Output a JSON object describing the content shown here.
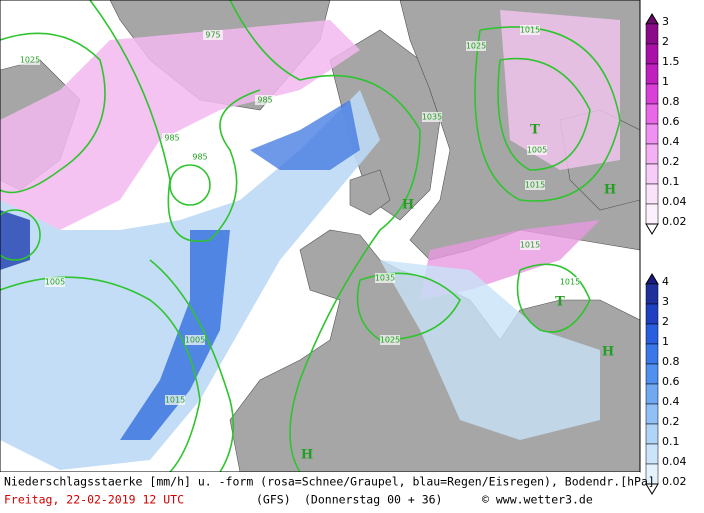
{
  "map_labels": [
    "1025",
    "975",
    "985",
    "985",
    "985",
    "1035",
    "1025",
    "1015",
    "1005",
    "1015",
    "1035",
    "1015",
    "1015",
    "1025",
    "1005",
    "1005",
    "1015",
    "T",
    "T",
    "H",
    "H",
    "H",
    "H"
  ],
  "legend_snow": [
    "3",
    "2",
    "1.5",
    "1",
    "0.8",
    "0.6",
    "0.4",
    "0.2",
    "0.1",
    "0.04",
    "0.02"
  ],
  "legend_rain": [
    "4",
    "3",
    "2",
    "1",
    "0.8",
    "0.6",
    "0.4",
    "0.2",
    "0.1",
    "0.04",
    "0.02"
  ],
  "footer": {
    "caption": "Niederschlagsstaerke [mm/h] u. -form (rosa=Schnee/Graupel, blau=Regen/Eisregen), Bodendr.[hPa]",
    "date": "Freitag, 22-02-2019  12 UTC",
    "model": "(GFS)",
    "step": "(Donnerstag 00 + 36)",
    "source": "© www.wetter3.de"
  }
}
